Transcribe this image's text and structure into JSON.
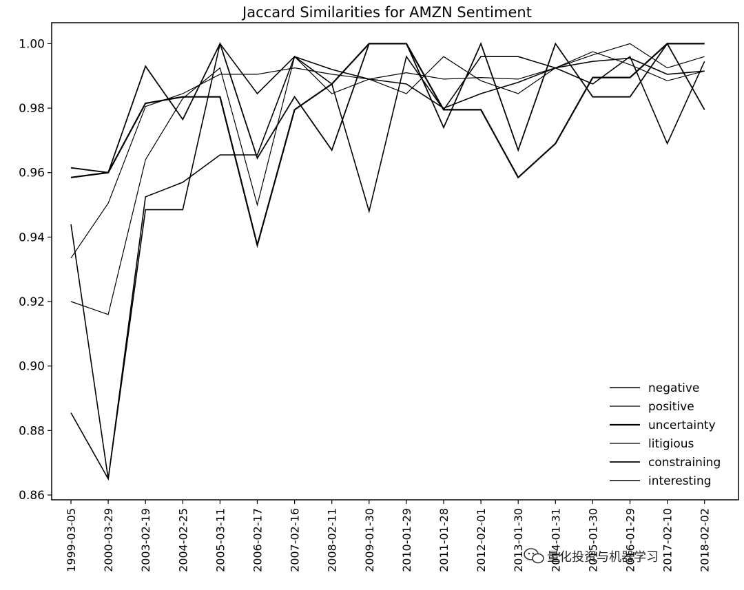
{
  "chart_data": {
    "type": "line",
    "title": "Jaccard Similarities for AMZN Sentiment",
    "xlabel": "",
    "ylabel": "",
    "categories": [
      "1999-03-05",
      "2000-03-29",
      "2003-02-19",
      "2004-02-25",
      "2005-03-11",
      "2006-02-17",
      "2007-02-16",
      "2008-02-11",
      "2009-01-30",
      "2010-01-29",
      "2011-01-28",
      "2012-02-01",
      "2013-01-30",
      "2014-01-31",
      "2015-01-30",
      "2016-01-29",
      "2017-02-10",
      "2018-02-02"
    ],
    "tick_labels": [
      "1999-03-05",
      "2000-03-29",
      "2003-02-19",
      "2004-02-25",
      "2005-03-11",
      "2006-02-17",
      "2007-02-16",
      "2008-02-11",
      "2009-01-30",
      "2010-01-29",
      "2011-01-28",
      "2012-02-01",
      "2013-01-30",
      "2014-01-31",
      "2015-01-30",
      "2016-01-29",
      "2017-02-10",
      "2018-02-02"
    ],
    "yticks": [
      "0.86",
      "0.88",
      "0.90",
      "0.92",
      "0.94",
      "0.96",
      "0.98",
      "1.00"
    ],
    "ylim": [
      0.8585,
      1.0065
    ],
    "grid": false,
    "legend_position": "lower-right",
    "color": "#000000",
    "series": [
      {
        "name": "negative",
        "values": [
          0.944,
          0.865,
          0.9525,
          0.957,
          0.9655,
          0.9655,
          0.996,
          0.992,
          0.989,
          0.9875,
          0.98,
          0.9845,
          0.988,
          0.9925,
          0.9945,
          0.9955,
          0.9905,
          0.9915
        ]
      },
      {
        "name": "positive",
        "values": [
          0.92,
          0.916,
          0.964,
          0.983,
          0.9925,
          0.95,
          0.996,
          0.9845,
          0.989,
          0.9845,
          0.996,
          0.9885,
          0.9845,
          0.9925,
          0.9975,
          0.9935,
          0.9885,
          0.9915
        ]
      },
      {
        "name": "uncertainty",
        "values": [
          0.9585,
          0.96,
          0.9815,
          0.9835,
          0.9835,
          0.9375,
          0.9795,
          0.9875,
          1.0,
          1.0,
          0.9795,
          0.9795,
          0.9585,
          0.969,
          0.9895,
          0.9895,
          1.0,
          1.0
        ]
      },
      {
        "name": "litigious",
        "values": [
          0.9335,
          0.9505,
          0.9805,
          0.9845,
          0.9905,
          0.9905,
          0.9925,
          0.9905,
          0.989,
          0.991,
          0.989,
          0.9895,
          0.989,
          0.9925,
          0.9965,
          1.0,
          0.9925,
          0.996
        ]
      },
      {
        "name": "constraining",
        "values": [
          0.9615,
          0.96,
          0.993,
          0.9765,
          1.0,
          0.9645,
          0.9835,
          0.967,
          1.0,
          1.0,
          0.974,
          1.0,
          0.967,
          1.0,
          0.9835,
          0.9835,
          1.0,
          0.9795
        ]
      },
      {
        "name": "interesting",
        "values": [
          0.8855,
          0.865,
          0.9485,
          0.9485,
          1.0,
          0.9845,
          0.996,
          0.9875,
          0.948,
          0.996,
          0.9795,
          0.996,
          0.996,
          0.9925,
          0.9875,
          0.996,
          0.969,
          0.9945
        ]
      }
    ]
  },
  "watermark": {
    "icon": "wechat-icon",
    "text": "量化投资与机器学习"
  }
}
